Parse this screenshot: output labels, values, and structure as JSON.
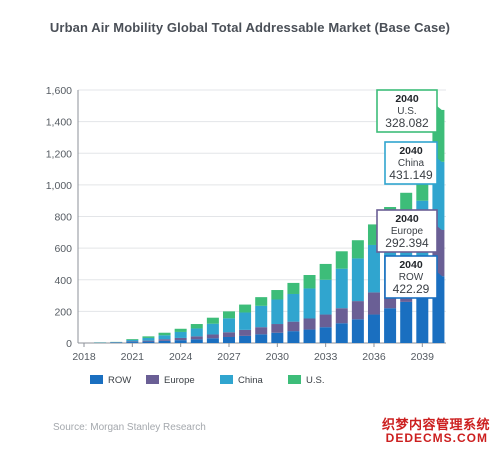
{
  "colors": {
    "ROW": "#1a6fc0",
    "Europe": "#6a5f95",
    "China": "#30a5cf",
    "U.S.": "#3dbd79"
  },
  "chart_data": {
    "type": "bar",
    "stacked": true,
    "title": "Urban Air Mobility Global Total Addressable Market (Base Case)",
    "xlabel": "",
    "ylabel": "",
    "ylim": [
      0,
      1600
    ],
    "yticks": [
      0,
      200,
      400,
      600,
      800,
      1000,
      1200,
      1400,
      1600
    ],
    "xtick_labels": [
      "2018",
      "2021",
      "2024",
      "2027",
      "2030",
      "2033",
      "2036",
      "2039"
    ],
    "categories": [
      "2018",
      "2019",
      "2020",
      "2021",
      "2022",
      "2023",
      "2024",
      "2025",
      "2026",
      "2027",
      "2028",
      "2029",
      "2030",
      "2031",
      "2032",
      "2033",
      "2034",
      "2035",
      "2036",
      "2037",
      "2038",
      "2039",
      "2040"
    ],
    "grid": true,
    "legend_position": "bottom",
    "series": [
      {
        "name": "ROW",
        "values": [
          0,
          1,
          2,
          6,
          9,
          14,
          18,
          24,
          30,
          38,
          45,
          55,
          65,
          75,
          85,
          100,
          125,
          150,
          180,
          220,
          260,
          320,
          422.29
        ]
      },
      {
        "name": "Europe",
        "values": [
          0,
          1,
          2,
          4,
          6,
          10,
          14,
          18,
          24,
          30,
          38,
          45,
          55,
          60,
          70,
          80,
          95,
          115,
          140,
          150,
          170,
          200,
          292.394
        ]
      },
      {
        "name": "China",
        "values": [
          0,
          1,
          2,
          10,
          17,
          25,
          38,
          50,
          68,
          88,
          110,
          135,
          155,
          175,
          190,
          220,
          250,
          270,
          300,
          340,
          350,
          380,
          431.149
        ]
      },
      {
        "name": "U.S.",
        "values": [
          0,
          1,
          1,
          5,
          10,
          16,
          20,
          28,
          38,
          44,
          50,
          55,
          60,
          70,
          85,
          100,
          110,
          115,
          130,
          150,
          170,
          200,
          328.082
        ]
      }
    ],
    "callouts": [
      {
        "series": "U.S.",
        "year": "2040",
        "name": "U.S.",
        "value": "328.082",
        "color": "#3dbd79"
      },
      {
        "series": "China",
        "year": "2040",
        "name": "China",
        "value": "431.149",
        "color": "#30a5cf"
      },
      {
        "series": "Europe",
        "year": "2040",
        "name": "Europe",
        "value": "292.394",
        "color": "#6a5f95"
      },
      {
        "series": "ROW",
        "year": "2040",
        "name": "ROW",
        "value": "422.29",
        "color": "#1a6fc0"
      }
    ]
  },
  "source": "Source: Morgan Stanley Research",
  "watermark": {
    "cn": "织梦内容管理系统",
    "en": "DEDECMS.COM"
  }
}
